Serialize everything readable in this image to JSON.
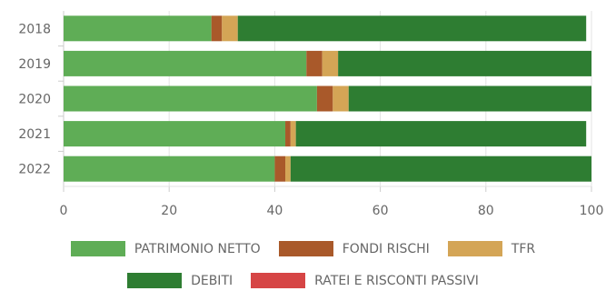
{
  "chart_data": {
    "type": "bar",
    "orientation": "horizontal",
    "stacked": true,
    "categories": [
      "2018",
      "2019",
      "2020",
      "2021",
      "2022"
    ],
    "series": [
      {
        "name": "PATRIMONIO NETTO",
        "color": "#5fad56",
        "values": [
          28,
          46,
          48,
          42,
          40
        ]
      },
      {
        "name": "FONDI RISCHI",
        "color": "#a9592a",
        "values": [
          2,
          3,
          3,
          1,
          2
        ]
      },
      {
        "name": "TFR",
        "color": "#d4a556",
        "values": [
          3,
          3,
          3,
          1,
          1
        ]
      },
      {
        "name": "DEBITI",
        "color": "#2e7d32",
        "values": [
          66,
          48,
          46,
          55,
          57
        ]
      },
      {
        "name": "RATEI E RISCONTI PASSIVI",
        "color": "#d64545",
        "values": [
          0,
          0,
          0,
          0,
          0
        ]
      }
    ],
    "x_ticks": [
      "0",
      "20",
      "40",
      "60",
      "80",
      "100"
    ],
    "xlim": [
      0,
      100
    ],
    "grid": true,
    "legend_position": "bottom",
    "title": "",
    "xlabel": "",
    "ylabel": ""
  }
}
